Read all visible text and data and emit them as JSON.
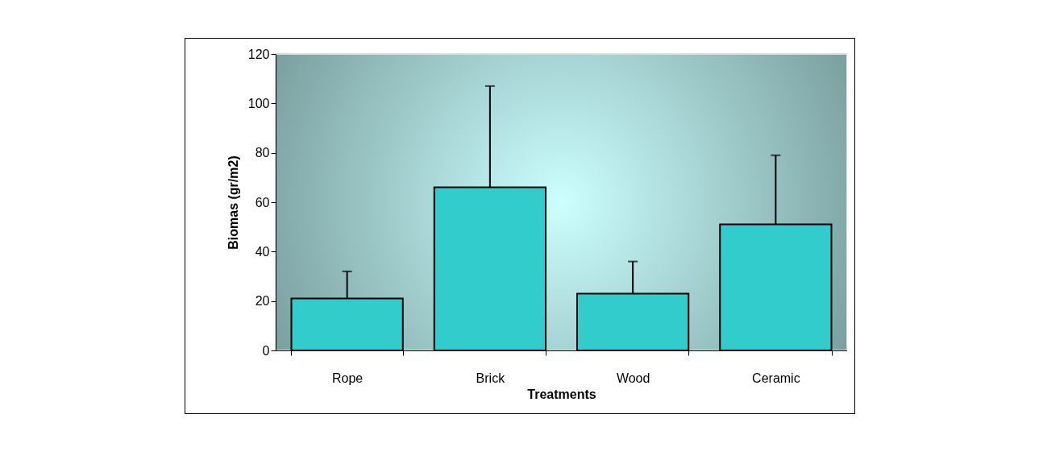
{
  "chart_data": {
    "type": "bar",
    "xlabel": "Treatments",
    "ylabel": "Biomas (gr/m2)",
    "categories": [
      "Rope",
      "Brick",
      "Wood",
      "Ceramic"
    ],
    "values": [
      21,
      66,
      23,
      51
    ],
    "errors": [
      [
        21,
        32
      ],
      [
        66,
        107
      ],
      [
        23,
        36
      ],
      [
        51,
        79
      ]
    ],
    "color": "#33cccc",
    "ylim": [
      0,
      120
    ],
    "yticks": [
      0,
      20,
      40,
      60,
      80,
      100,
      120
    ],
    "grid": false
  }
}
